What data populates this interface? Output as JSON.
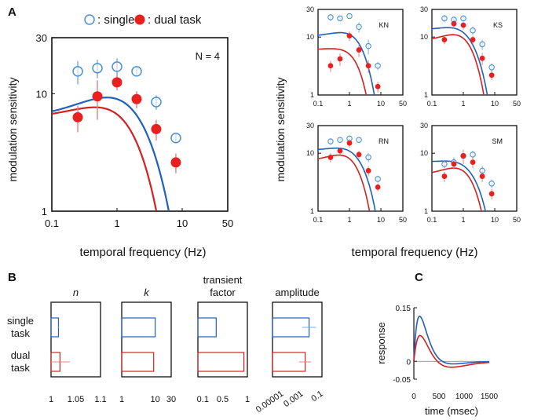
{
  "colors": {
    "single": "#1f5fbf",
    "single_light": "#7fa8db",
    "dual": "#d42020",
    "dual_light": "#e88080",
    "axis": "#111111"
  },
  "panel_labels": {
    "a": "A",
    "b": "B",
    "c": "C"
  },
  "legend": {
    "single": ": single /",
    "dual": ": dual task"
  },
  "shared": {
    "xlabel": "temporal frequency (Hz)",
    "ylabel": "modulation sensitivity"
  },
  "chart_data": [
    {
      "id": "mean",
      "type": "line",
      "title": "N = 4",
      "xscale": "log",
      "yscale": "log",
      "xlim": [
        0.1,
        50
      ],
      "ylim": [
        1,
        30
      ],
      "xticks": [
        "0.1",
        "1",
        "10",
        "50"
      ],
      "xtick_values": [
        0.1,
        1,
        10,
        50
      ],
      "yticks": [
        "1",
        "10",
        "30"
      ],
      "ytick_values": [
        1,
        10,
        30
      ],
      "series": [
        {
          "name": "single",
          "x": [
            0.25,
            0.5,
            1,
            2,
            4,
            8
          ],
          "y": [
            15.5,
            16.5,
            17.0,
            15.5,
            8.5,
            4.2
          ],
          "err": [
            3.5,
            3.0,
            3.0,
            1.2,
            1.2,
            0.3
          ],
          "fit": {
            "type": "dog",
            "A": 17.0,
            "B": 11.0,
            "fc": 2.2,
            "fs": 0.55
          }
        },
        {
          "name": "dual",
          "x": [
            0.25,
            0.5,
            1,
            2,
            4,
            8
          ],
          "y": [
            6.3,
            9.5,
            12.5,
            9.0,
            5.0,
            2.6
          ],
          "err": [
            1.6,
            3.5,
            1.8,
            1.5,
            1.0,
            0.5
          ],
          "fit": {
            "type": "dog",
            "A": 16.0,
            "B": 10.0,
            "fc": 1.45,
            "fs": 0.5
          }
        }
      ]
    },
    {
      "id": "KN",
      "type": "line",
      "title": "KN",
      "xscale": "log",
      "yscale": "log",
      "xlim": [
        0.1,
        50
      ],
      "ylim": [
        1,
        30
      ],
      "xticks": [
        "0.1",
        "1",
        "10",
        "50"
      ],
      "xtick_values": [
        0.1,
        1,
        10,
        50
      ],
      "yticks": [
        "1",
        "10",
        "30"
      ],
      "ytick_values": [
        1,
        10,
        30
      ],
      "series": [
        {
          "name": "single",
          "x": [
            0.25,
            0.5,
            1,
            2,
            4,
            8
          ],
          "y": [
            22,
            21,
            23,
            15,
            7,
            3.2
          ],
          "err": [
            3,
            2,
            2,
            3,
            2,
            0.5
          ],
          "fit": {
            "type": "dog",
            "A": 22.0,
            "B": 12.0,
            "fc": 2.0,
            "fs": 0.6
          }
        },
        {
          "name": "dual",
          "x": [
            0.25,
            0.5,
            1,
            2,
            4,
            8
          ],
          "y": [
            3.2,
            4.2,
            10.5,
            6.0,
            3.2,
            1.4
          ],
          "err": [
            0.7,
            1.0,
            2.0,
            1.5,
            0.8,
            0.3
          ],
          "fit": {
            "type": "dog",
            "A": 16.0,
            "B": 10.0,
            "fc": 1.25,
            "fs": 0.65
          }
        }
      ]
    },
    {
      "id": "KS",
      "type": "line",
      "title": "KS",
      "xscale": "log",
      "yscale": "log",
      "xlim": [
        0.1,
        50
      ],
      "ylim": [
        1,
        30
      ],
      "xticks": [
        "0.1",
        "1",
        "10",
        "50"
      ],
      "xtick_values": [
        0.1,
        1,
        10,
        50
      ],
      "yticks": [
        "1",
        "10",
        "30"
      ],
      "ytick_values": [
        1,
        10,
        30
      ],
      "series": [
        {
          "name": "single",
          "x": [
            0.25,
            0.5,
            1,
            2,
            4,
            8
          ],
          "y": [
            21,
            20,
            21,
            13,
            7.5,
            3.0
          ],
          "err": [
            3,
            2,
            2,
            2,
            1.5,
            0.5
          ],
          "fit": {
            "type": "dog",
            "A": 21.0,
            "B": 8.0,
            "fc": 1.9,
            "fs": 0.35
          }
        },
        {
          "name": "dual",
          "x": [
            0.25,
            0.5,
            1,
            2,
            4,
            8
          ],
          "y": [
            9.0,
            17.0,
            16.0,
            9.0,
            4.3,
            2.2
          ],
          "err": [
            1.5,
            3,
            2.5,
            1.5,
            1,
            0.4
          ],
          "fit": {
            "type": "dog",
            "A": 22.0,
            "B": 14.0,
            "fc": 1.45,
            "fs": 0.45
          }
        }
      ]
    },
    {
      "id": "RN",
      "type": "line",
      "title": "RN",
      "xscale": "log",
      "yscale": "log",
      "xlim": [
        0.1,
        50
      ],
      "ylim": [
        1,
        30
      ],
      "xticks": [
        "0.1",
        "1",
        "10",
        "50"
      ],
      "xtick_values": [
        0.1,
        1,
        10,
        50
      ],
      "yticks": [
        "1",
        "10",
        "30"
      ],
      "ytick_values": [
        1,
        10,
        30
      ],
      "series": [
        {
          "name": "single",
          "x": [
            0.25,
            0.5,
            1,
            2,
            4,
            8
          ],
          "y": [
            16,
            17,
            18,
            17,
            8.5,
            3.6
          ],
          "err": [
            2,
            2,
            2,
            2,
            1.5,
            0.5
          ],
          "fit": {
            "type": "dog",
            "A": 18.0,
            "B": 7.0,
            "fc": 2.3,
            "fs": 0.45
          }
        },
        {
          "name": "dual",
          "x": [
            0.25,
            0.5,
            1,
            2,
            4,
            8
          ],
          "y": [
            8.5,
            11.0,
            15.0,
            9.5,
            5.0,
            2.6
          ],
          "err": [
            1.5,
            1.5,
            2.5,
            1.5,
            1,
            0.4
          ],
          "fit": {
            "type": "dog",
            "A": 18.0,
            "B": 11.0,
            "fc": 1.5,
            "fs": 0.45
          }
        }
      ]
    },
    {
      "id": "SM",
      "type": "line",
      "title": "SM",
      "xscale": "log",
      "yscale": "log",
      "xlim": [
        0.1,
        50
      ],
      "ylim": [
        1,
        30
      ],
      "xticks": [
        "0.1",
        "1",
        "10",
        "50"
      ],
      "xtick_values": [
        0.1,
        1,
        10,
        50
      ],
      "yticks": [
        "1",
        "10",
        "30"
      ],
      "ytick_values": [
        1,
        10,
        30
      ],
      "series": [
        {
          "name": "single",
          "x": [
            0.25,
            0.5,
            1,
            2,
            4,
            8
          ],
          "y": [
            6.5,
            7.0,
            9.0,
            9.5,
            5.0,
            3.0
          ],
          "err": [
            1,
            1.5,
            2,
            1.5,
            1,
            0.5
          ],
          "fit": {
            "type": "dog",
            "A": 10.0,
            "B": 3.0,
            "fc": 2.2,
            "fs": 0.4
          }
        },
        {
          "name": "dual",
          "x": [
            0.25,
            0.5,
            1,
            2,
            4,
            8
          ],
          "y": [
            4.0,
            6.5,
            9.0,
            7.0,
            4.0,
            2.0
          ],
          "err": [
            0.8,
            1.2,
            2.5,
            1.5,
            0.8,
            0.4
          ],
          "fit": {
            "type": "dog",
            "A": 10.5,
            "B": 6.5,
            "fc": 1.6,
            "fs": 0.45
          }
        }
      ]
    },
    {
      "id": "params",
      "type": "bar",
      "orientation": "horizontal",
      "categories": [
        "single task",
        "dual task"
      ],
      "category_lines": [
        [
          "single",
          "task"
        ],
        [
          "dual",
          "task"
        ]
      ],
      "panels": [
        {
          "title_lines": [
            "n"
          ],
          "italic": true,
          "scale": "linear",
          "xlim": [
            1,
            1.1
          ],
          "ticks": [
            "1",
            "1.05",
            "1.1"
          ],
          "tick_values": [
            1,
            1.05,
            1.1
          ],
          "tick_rotate": false,
          "values": [
            1.015,
            1.018
          ],
          "errors": [
            0.001,
            0.02
          ]
        },
        {
          "title_lines": [
            "k"
          ],
          "italic": true,
          "scale": "log",
          "xlim": [
            1,
            30
          ],
          "ticks": [
            "1",
            "10",
            "30"
          ],
          "tick_values": [
            1,
            10,
            30
          ],
          "tick_rotate": false,
          "values": [
            10.0,
            9.0
          ],
          "errors": [
            0,
            0
          ]
        },
        {
          "title_lines": [
            "transient",
            "factor"
          ],
          "italic": false,
          "scale": "linear",
          "xlim": [
            0,
            1
          ],
          "ticks": [
            "0.1",
            "0.5",
            "1"
          ],
          "tick_values": [
            0.1,
            0.5,
            1
          ],
          "tick_rotate": false,
          "values": [
            0.37,
            0.93
          ],
          "errors": [
            0,
            0
          ]
        },
        {
          "title_lines": [
            "amplitude"
          ],
          "italic": false,
          "scale": "log",
          "xlim": [
            1e-06,
            0.1
          ],
          "ticks": [
            "0.00001",
            "0.001",
            "0.1"
          ],
          "tick_values": [
            1e-05,
            0.001,
            0.1
          ],
          "tick_rotate": true,
          "values": [
            0.005,
            0.002
          ],
          "errors": [
            0.02,
            0.006
          ]
        }
      ]
    },
    {
      "id": "impulse",
      "type": "line",
      "title": "",
      "xlabel": "time (msec)",
      "ylabel": "response",
      "xlim": [
        0,
        1500
      ],
      "ylim": [
        -0.05,
        0.15
      ],
      "xticks": [
        "0",
        "500",
        "1000",
        "1500"
      ],
      "xtick_values": [
        0,
        500,
        1000,
        1500
      ],
      "yticks": [
        "0.15",
        "0",
        "-0.05"
      ],
      "ytick_values": [
        0.15,
        0,
        -0.05
      ],
      "series": [
        {
          "name": "single",
          "peak": 0.128,
          "peak_time": 120,
          "trough": -0.015,
          "trough_time": 500
        },
        {
          "name": "dual",
          "peak": 0.075,
          "peak_time": 140,
          "trough": -0.025,
          "trough_time": 560
        }
      ]
    }
  ]
}
